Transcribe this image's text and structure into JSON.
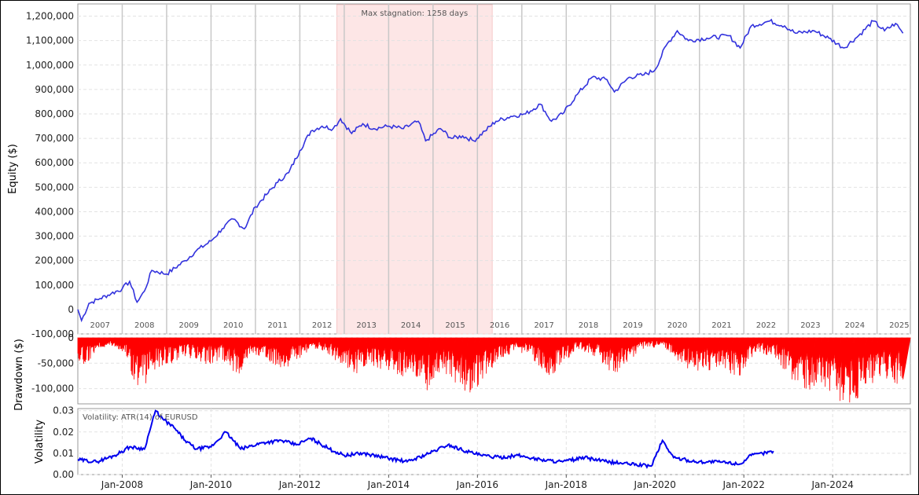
{
  "chart_data": [
    {
      "type": "line",
      "name": "equity",
      "ylabel": "Equity ($)",
      "ylim": [
        -100000,
        1250000
      ],
      "y_ticks": [
        "-100,000",
        "0",
        "100,000",
        "200,000",
        "300,000",
        "400,000",
        "500,000",
        "600,000",
        "700,000",
        "800,000",
        "900,000",
        "1,000,000",
        "1,100,000",
        "1,200,000"
      ],
      "year_labels": [
        "2007",
        "2008",
        "2009",
        "2010",
        "2011",
        "2012",
        "2013",
        "2014",
        "2015",
        "2016",
        "2017",
        "2018",
        "2019",
        "2020",
        "2021",
        "2022",
        "2023",
        "2024",
        "2025"
      ],
      "annotation": "Max stagnation: 1258 days",
      "stagnation_range": [
        "2012-11",
        "2016-05"
      ],
      "line_color": "#3333dd",
      "stagnation_color": "#fde6e6",
      "grid": true,
      "points": [
        [
          "2007-01",
          0
        ],
        [
          "2007-02",
          -45000
        ],
        [
          "2007-04",
          25000
        ],
        [
          "2007-07",
          45000
        ],
        [
          "2007-10",
          65000
        ],
        [
          "2008-01",
          85000
        ],
        [
          "2008-03",
          115000
        ],
        [
          "2008-05",
          30000
        ],
        [
          "2008-07",
          75000
        ],
        [
          "2008-09",
          160000
        ],
        [
          "2009-01",
          145000
        ],
        [
          "2009-06",
          200000
        ],
        [
          "2009-09",
          240000
        ],
        [
          "2010-01",
          280000
        ],
        [
          "2010-04",
          330000
        ],
        [
          "2010-07",
          370000
        ],
        [
          "2010-10",
          330000
        ],
        [
          "2011-01",
          420000
        ],
        [
          "2011-04",
          470000
        ],
        [
          "2011-07",
          520000
        ],
        [
          "2011-10",
          560000
        ],
        [
          "2012-01",
          650000
        ],
        [
          "2012-04",
          730000
        ],
        [
          "2012-07",
          750000
        ],
        [
          "2012-10",
          740000
        ],
        [
          "2012-12",
          780000
        ],
        [
          "2013-03",
          720000
        ],
        [
          "2013-06",
          760000
        ],
        [
          "2013-09",
          740000
        ],
        [
          "2014-01",
          750000
        ],
        [
          "2014-05",
          740000
        ],
        [
          "2014-09",
          770000
        ],
        [
          "2014-11",
          690000
        ],
        [
          "2015-03",
          740000
        ],
        [
          "2015-06",
          700000
        ],
        [
          "2015-09",
          710000
        ],
        [
          "2015-12",
          690000
        ],
        [
          "2016-03",
          730000
        ],
        [
          "2016-06",
          770000
        ],
        [
          "2016-10",
          790000
        ],
        [
          "2017-02",
          800000
        ],
        [
          "2017-06",
          840000
        ],
        [
          "2017-09",
          770000
        ],
        [
          "2017-12",
          800000
        ],
        [
          "2018-04",
          880000
        ],
        [
          "2018-08",
          950000
        ],
        [
          "2018-12",
          940000
        ],
        [
          "2019-02",
          890000
        ],
        [
          "2019-06",
          950000
        ],
        [
          "2019-10",
          960000
        ],
        [
          "2020-01",
          980000
        ],
        [
          "2020-04",
          1080000
        ],
        [
          "2020-07",
          1140000
        ],
        [
          "2020-10",
          1100000
        ],
        [
          "2021-03",
          1110000
        ],
        [
          "2021-09",
          1120000
        ],
        [
          "2021-12",
          1070000
        ],
        [
          "2022-03",
          1160000
        ],
        [
          "2022-08",
          1180000
        ],
        [
          "2022-12",
          1160000
        ],
        [
          "2023-03",
          1130000
        ],
        [
          "2023-08",
          1140000
        ],
        [
          "2023-12",
          1110000
        ],
        [
          "2024-04",
          1070000
        ],
        [
          "2024-08",
          1120000
        ],
        [
          "2024-12",
          1180000
        ],
        [
          "2025-03",
          1140000
        ],
        [
          "2025-06",
          1170000
        ],
        [
          "2025-08",
          1130000
        ]
      ]
    },
    {
      "type": "bar",
      "name": "drawdown",
      "ylabel": "Drawdown ($)",
      "ylim": [
        -130000,
        0
      ],
      "y_ticks": [
        "0",
        "-50,000",
        "-100,000"
      ],
      "bar_color": "#ff0000",
      "grid": true,
      "points": [
        [
          "2007-01",
          -40000
        ],
        [
          "2007-03",
          -55000
        ],
        [
          "2007-06",
          -20000
        ],
        [
          "2007-10",
          -15000
        ],
        [
          "2008-02",
          -30000
        ],
        [
          "2008-04",
          -75000
        ],
        [
          "2008-06",
          -100000
        ],
        [
          "2008-09",
          -60000
        ],
        [
          "2008-12",
          -50000
        ],
        [
          "2009-03",
          -45000
        ],
        [
          "2009-07",
          -35000
        ],
        [
          "2009-11",
          -50000
        ],
        [
          "2010-04",
          -40000
        ],
        [
          "2010-08",
          -70000
        ],
        [
          "2010-12",
          -30000
        ],
        [
          "2011-04",
          -45000
        ],
        [
          "2011-09",
          -55000
        ],
        [
          "2012-01",
          -40000
        ],
        [
          "2012-05",
          -20000
        ],
        [
          "2012-09",
          -30000
        ],
        [
          "2013-01",
          -55000
        ],
        [
          "2013-05",
          -65000
        ],
        [
          "2013-09",
          -55000
        ],
        [
          "2014-01",
          -60000
        ],
        [
          "2014-05",
          -75000
        ],
        [
          "2014-09",
          -70000
        ],
        [
          "2014-11",
          -100000
        ],
        [
          "2015-03",
          -60000
        ],
        [
          "2015-07",
          -80000
        ],
        [
          "2015-11",
          -105000
        ],
        [
          "2016-03",
          -70000
        ],
        [
          "2016-07",
          -40000
        ],
        [
          "2016-11",
          -25000
        ],
        [
          "2017-03",
          -30000
        ],
        [
          "2017-08",
          -75000
        ],
        [
          "2017-12",
          -50000
        ],
        [
          "2018-04",
          -20000
        ],
        [
          "2018-09",
          -35000
        ],
        [
          "2019-02",
          -70000
        ],
        [
          "2019-06",
          -40000
        ],
        [
          "2019-10",
          -20000
        ],
        [
          "2020-03",
          -15000
        ],
        [
          "2020-09",
          -55000
        ],
        [
          "2021-02",
          -60000
        ],
        [
          "2021-07",
          -55000
        ],
        [
          "2021-12",
          -75000
        ],
        [
          "2022-04",
          -25000
        ],
        [
          "2022-09",
          -35000
        ],
        [
          "2023-01",
          -70000
        ],
        [
          "2023-06",
          -95000
        ],
        [
          "2023-10",
          -90000
        ],
        [
          "2024-02",
          -110000
        ],
        [
          "2024-06",
          -125000
        ],
        [
          "2024-10",
          -95000
        ],
        [
          "2025-02",
          -70000
        ],
        [
          "2025-06",
          -85000
        ],
        [
          "2025-08",
          -75000
        ]
      ]
    },
    {
      "type": "line",
      "name": "volatility",
      "ylabel": "Volatility",
      "legend": "Volatility: ATR(14) of EURUSD",
      "ylim": [
        0,
        0.031
      ],
      "y_ticks": [
        "0.00",
        "0.01",
        "0.02",
        "0.03"
      ],
      "x_ticks": [
        "Jan-2008",
        "Jan-2010",
        "Jan-2012",
        "Jan-2014",
        "Jan-2016",
        "Jan-2018",
        "Jan-2020",
        "Jan-2022",
        "Jan-2024"
      ],
      "line_color": "#0000ee",
      "grid": true,
      "points": [
        [
          "2007-01",
          0.007
        ],
        [
          "2007-06",
          0.006
        ],
        [
          "2007-11",
          0.009
        ],
        [
          "2008-03",
          0.013
        ],
        [
          "2008-07",
          0.012
        ],
        [
          "2008-10",
          0.03
        ],
        [
          "2008-12",
          0.026
        ],
        [
          "2009-03",
          0.022
        ],
        [
          "2009-06",
          0.016
        ],
        [
          "2009-09",
          0.012
        ],
        [
          "2010-01",
          0.013
        ],
        [
          "2010-05",
          0.02
        ],
        [
          "2010-09",
          0.012
        ],
        [
          "2011-03",
          0.015
        ],
        [
          "2011-08",
          0.016
        ],
        [
          "2011-12",
          0.014
        ],
        [
          "2012-04",
          0.017
        ],
        [
          "2012-09",
          0.012
        ],
        [
          "2013-01",
          0.009
        ],
        [
          "2013-06",
          0.01
        ],
        [
          "2013-12",
          0.008
        ],
        [
          "2014-06",
          0.006
        ],
        [
          "2014-12",
          0.01
        ],
        [
          "2015-05",
          0.014
        ],
        [
          "2015-10",
          0.011
        ],
        [
          "2016-02",
          0.009
        ],
        [
          "2016-07",
          0.008
        ],
        [
          "2016-12",
          0.009
        ],
        [
          "2017-06",
          0.007
        ],
        [
          "2017-12",
          0.006
        ],
        [
          "2018-06",
          0.008
        ],
        [
          "2018-12",
          0.006
        ],
        [
          "2019-06",
          0.005
        ],
        [
          "2019-12",
          0.004
        ],
        [
          "2020-03",
          0.016
        ],
        [
          "2020-06",
          0.008
        ],
        [
          "2020-12",
          0.006
        ],
        [
          "2021-06",
          0.006
        ],
        [
          "2021-12",
          0.005
        ],
        [
          "2022-03",
          0.009
        ],
        [
          "2022-06",
          0.01
        ],
        [
          "2022-09",
          0.011
        ]
      ]
    }
  ]
}
